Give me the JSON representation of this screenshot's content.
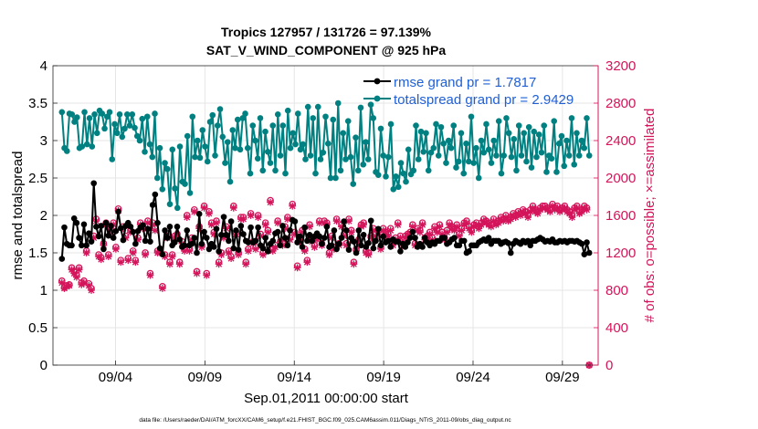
{
  "colors": {
    "rmse": "#000000",
    "spread": "#008080",
    "obs": "#d4145a",
    "legend_text": "#1f5fd6",
    "grid": "#e6e6e6"
  },
  "chart_data": {
    "type": "line",
    "title_line1": "Tropics 127957 / 131726 = 97.139%",
    "title_line2": "SAT_V_WIND_COMPONENT @ 925 hPa",
    "xlabel": "Sep.01,2011 00:00:00 start",
    "ylabel_left": "rmse and totalspread",
    "ylabel_right": "# of obs: o=possible; ×=assimilated",
    "footer": "data file: /Users/raeder/DAI/ATM_forcXX/CAM6_setup/f.e21.FHIST_BGC.f09_025.CAM6assim.011/Diags_NTrS_2011-09/obs_diag_output.nc",
    "xlim": [
      0,
      30.5
    ],
    "ylim_left": [
      0,
      4
    ],
    "ylim_right": [
      0,
      3200
    ],
    "x_ticks": [
      {
        "pos": 3.5,
        "label": "09/04"
      },
      {
        "pos": 8.5,
        "label": "09/09"
      },
      {
        "pos": 13.5,
        "label": "09/14"
      },
      {
        "pos": 18.5,
        "label": "09/19"
      },
      {
        "pos": 23.5,
        "label": "09/24"
      },
      {
        "pos": 28.5,
        "label": "09/29"
      }
    ],
    "y_ticks_left": [
      "0",
      "0.5",
      "1",
      "1.5",
      "2",
      "2.5",
      "3",
      "3.5",
      "4"
    ],
    "y_ticks_right": [
      "0",
      "400",
      "800",
      "1200",
      "1600",
      "2000",
      "2400",
      "2800",
      "3200"
    ],
    "legend": {
      "location": "top-right",
      "entries": [
        "rmse grand pr = 1.7817",
        "totalspread grand pr = 2.9429"
      ]
    },
    "series": [
      {
        "name": "rmse",
        "axis": "left",
        "values": [
          1.42,
          1.84,
          1.62,
          1.6,
          1.6,
          1.96,
          1.9,
          1.7,
          1.6,
          1.88,
          1.6,
          1.76,
          1.65,
          2.43,
          1.85,
          1.72,
          1.86,
          1.55,
          1.9,
          1.73,
          1.86,
          1.7,
          1.79,
          2.05,
          1.83,
          1.67,
          1.86,
          1.9,
          1.85,
          1.78,
          1.62,
          1.79,
          1.84,
          1.87,
          1.66,
          1.82,
          1.65,
          2.14,
          2.28,
          1.9,
          1.56,
          1.48,
          1.8,
          1.7,
          1.85,
          1.6,
          1.64,
          1.85,
          1.68,
          1.58,
          1.6,
          1.8,
          1.6,
          1.62,
          1.7,
          1.5,
          2.02,
          1.62,
          1.78,
          1.7,
          1.55,
          1.62,
          1.58,
          1.82,
          1.52,
          1.74,
          1.98,
          1.74,
          1.66,
          1.92,
          1.56,
          1.8,
          1.54,
          1.86,
          1.75,
          1.66,
          1.64,
          1.84,
          1.64,
          1.66,
          1.84,
          1.6,
          1.56,
          1.7,
          1.52,
          1.62,
          1.66,
          1.76,
          1.78,
          1.6,
          1.86,
          1.7,
          1.6,
          1.8,
          1.94,
          1.92,
          1.64,
          1.72,
          1.58,
          1.84,
          1.66,
          1.74,
          1.66,
          1.72,
          1.76,
          1.72,
          1.62,
          1.7,
          1.85,
          1.58,
          1.6,
          1.8,
          1.55,
          1.62,
          1.7,
          1.92,
          1.8,
          1.54,
          1.7,
          1.65,
          1.5,
          1.8,
          1.6,
          1.74,
          1.58,
          1.63,
          1.93,
          1.56,
          1.66,
          1.82,
          1.6,
          1.72,
          1.64,
          1.66,
          1.58,
          1.68,
          1.65,
          1.65,
          1.52,
          1.62,
          1.58,
          1.64,
          1.7,
          1.78,
          1.7,
          1.58,
          1.62,
          1.58,
          1.7,
          1.64,
          1.6,
          1.64,
          1.62,
          1.66,
          1.66,
          1.7,
          1.7,
          1.62,
          1.64,
          1.68,
          1.7,
          1.6,
          1.6,
          1.66,
          1.66,
          1.5,
          1.52,
          1.6,
          1.6,
          1.6,
          1.64,
          1.66,
          1.68,
          1.66,
          1.7,
          1.62,
          1.66,
          1.66,
          1.66,
          1.62,
          1.64,
          1.65,
          1.63,
          1.5,
          1.62,
          1.66,
          1.64,
          1.62,
          1.66,
          1.64,
          1.66,
          1.6,
          1.66,
          1.66,
          1.68,
          1.7,
          1.68,
          1.65,
          1.66,
          1.65,
          1.68,
          1.64,
          1.64,
          1.66,
          1.65,
          1.66,
          1.64,
          1.66,
          1.66,
          1.65,
          1.66,
          1.64,
          1.62,
          1.48,
          1.64,
          1.5
        ]
      },
      {
        "name": "totalspread",
        "axis": "left",
        "values": [
          3.38,
          2.9,
          2.86,
          3.36,
          3.35,
          3.25,
          3.31,
          2.9,
          2.92,
          3.38,
          2.95,
          3.3,
          2.92,
          3.35,
          3.1,
          3.4,
          3.36,
          3.16,
          3.32,
          3.38,
          2.75,
          3.22,
          3.1,
          3.35,
          3.05,
          3.16,
          3.35,
          3.2,
          3.35,
          3.17,
          3.06,
          3.0,
          3.29,
          2.85,
          3.32,
          2.95,
          2.78,
          3.36,
          2.5,
          2.9,
          2.35,
          2.7,
          2.62,
          2.15,
          2.88,
          2.36,
          2.1,
          2.92,
          2.45,
          2.42,
          3.06,
          2.3,
          3.32,
          2.78,
          3.0,
          2.77,
          3.14,
          2.92,
          2.72,
          3.25,
          3.34,
          2.8,
          3.2,
          3.42,
          3.05,
          2.7,
          2.98,
          2.45,
          3.14,
          2.9,
          3.28,
          2.88,
          3.3,
          3.36,
          2.9,
          2.56,
          3.2,
          3.0,
          2.76,
          3.3,
          2.6,
          3.12,
          2.85,
          2.7,
          3.2,
          2.6,
          3.35,
          2.8,
          3.2,
          2.56,
          3.4,
          2.9,
          3.1,
          2.95,
          3.36,
          2.88,
          2.95,
          2.75,
          3.45,
          2.8,
          3.3,
          2.56,
          3.45,
          2.75,
          2.84,
          3.32,
          2.96,
          2.5,
          3.28,
          2.5,
          3.5,
          2.6,
          3.1,
          2.75,
          3.26,
          2.78,
          2.42,
          3.04,
          2.6,
          3.44,
          2.68,
          2.98,
          2.75,
          3.48,
          3.3,
          2.58,
          2.54,
          3.16,
          2.8,
          2.52,
          2.78,
          3.22,
          2.35,
          2.52,
          2.38,
          2.7,
          2.56,
          2.45,
          2.88,
          2.55,
          2.6,
          3.2,
          2.75,
          3.12,
          2.85,
          3.1,
          2.6,
          2.84,
          2.9,
          3.22,
          2.8,
          3.18,
          2.96,
          2.7,
          3.0,
          2.9,
          3.2,
          2.64,
          2.72,
          3.1,
          2.56,
          2.96,
          2.72,
          3.32,
          2.7,
          2.9,
          2.5,
          3.0,
          2.84,
          3.22,
          2.88,
          2.7,
          3.0,
          2.8,
          3.26,
          2.56,
          2.8,
          3.3,
          3.1,
          2.78,
          3.02,
          2.6,
          3.2,
          2.8,
          3.1,
          2.72,
          3.18,
          2.64,
          3.12,
          2.78,
          3.08,
          2.84,
          3.2,
          2.58,
          2.8,
          2.76,
          3.26,
          2.58,
          2.96,
          3.06,
          2.66,
          3.0,
          2.8,
          3.3,
          2.68,
          3.1,
          2.8,
          3.0,
          2.9,
          3.3,
          2.8
        ]
      },
      {
        "name": "obs_possible",
        "axis": "right",
        "values": [
          900,
          830,
          850,
          860,
          1040,
          1000,
          960,
          1040,
          880,
          900,
          1220,
          870,
          820,
          1380,
          1560,
          1180,
          1150,
          1300,
          1520,
          1180,
          1440,
          1520,
          1260,
          1670,
          1120,
          1480,
          1380,
          1140,
          1440,
          1220,
          1120,
          1360,
          1520,
          1480,
          1200,
          1540,
          980,
          1520,
          1460,
          1220,
          1220,
          840,
          1180,
          1380,
          1100,
          1180,
          1380,
          1400,
          1100,
          1320,
          1240,
          1600,
          1240,
          1360,
          1660,
          1000,
          1480,
          1280,
          1700,
          980,
          1640,
          1520,
          1420,
          1540,
          1100,
          1200,
          1380,
          1480,
          1220,
          1160,
          1700,
          1420,
          1200,
          1580,
          1580,
          1100,
          1240,
          1620,
          1320,
          1260,
          1600,
          1400,
          1200,
          1520,
          1440,
          1760,
          1240,
          1280,
          1540,
          1320,
          1300,
          1480,
          1580,
          1360,
          1720,
          1420,
          1060,
          1340,
          1440,
          1240,
          1120,
          1500,
          1340,
          1280,
          1360,
          1540,
          1300,
          1540,
          1520,
          1200,
          1380,
          1260,
          1560,
          1300,
          1500,
          1400,
          1300,
          1560,
          1440,
          1100,
          1240,
          1340,
          1500,
          1520,
          1220,
          1200,
          1380,
          1460,
          1400,
          1440,
          1260,
          1460,
          1420,
          1400,
          1460,
          1300,
          1360,
          1520,
          1380,
          1300,
          1380,
          1400,
          1420,
          1500,
          1300,
          1460,
          1440,
          1520,
          1360,
          1380,
          1420,
          1360,
          1480,
          1440,
          1500,
          1420,
          1360,
          1440,
          1520,
          1480,
          1460,
          1500,
          1400,
          1460,
          1520,
          1540,
          1480,
          1440,
          1500,
          1520,
          1480,
          1520,
          1560,
          1540,
          1520,
          1500,
          1560,
          1520,
          1540,
          1580,
          1560,
          1600,
          1560,
          1580,
          1620,
          1600,
          1640,
          1620,
          1660,
          1640,
          1600,
          1660,
          1700,
          1660,
          1640,
          1680,
          1700,
          1700,
          1680,
          1660,
          1720,
          1680,
          1700,
          1660,
          1680,
          1700,
          1660,
          1640,
          1600,
          1680,
          1700,
          1640,
          1660,
          1700,
          1680,
          0
        ]
      },
      {
        "name": "obs_assimilated",
        "axis": "right",
        "values": [
          880,
          820,
          840,
          850,
          1020,
          980,
          940,
          1020,
          860,
          880,
          1200,
          850,
          800,
          1360,
          1540,
          1160,
          1130,
          1280,
          1500,
          1160,
          1420,
          1500,
          1240,
          1650,
          1100,
          1460,
          1360,
          1120,
          1420,
          1200,
          1100,
          1340,
          1500,
          1460,
          1180,
          1520,
          960,
          1500,
          1440,
          1200,
          1200,
          820,
          1160,
          1360,
          1080,
          1160,
          1360,
          1380,
          1080,
          1300,
          1220,
          1580,
          1220,
          1340,
          1640,
          980,
          1460,
          1260,
          1680,
          960,
          1620,
          1500,
          1400,
          1520,
          1080,
          1180,
          1360,
          1460,
          1200,
          1140,
          1680,
          1400,
          1180,
          1560,
          1560,
          1080,
          1220,
          1600,
          1300,
          1240,
          1580,
          1380,
          1180,
          1500,
          1420,
          1740,
          1220,
          1260,
          1520,
          1300,
          1280,
          1460,
          1560,
          1340,
          1700,
          1400,
          1040,
          1320,
          1420,
          1220,
          1100,
          1480,
          1320,
          1260,
          1340,
          1520,
          1280,
          1520,
          1500,
          1180,
          1360,
          1240,
          1540,
          1280,
          1480,
          1380,
          1280,
          1540,
          1420,
          1080,
          1220,
          1320,
          1480,
          1500,
          1200,
          1180,
          1360,
          1440,
          1380,
          1420,
          1240,
          1440,
          1400,
          1380,
          1440,
          1280,
          1340,
          1500,
          1360,
          1280,
          1360,
          1380,
          1400,
          1480,
          1280,
          1440,
          1420,
          1500,
          1340,
          1360,
          1400,
          1340,
          1460,
          1420,
          1480,
          1400,
          1340,
          1420,
          1500,
          1460,
          1440,
          1480,
          1380,
          1440,
          1500,
          1520,
          1460,
          1420,
          1480,
          1500,
          1460,
          1500,
          1540,
          1520,
          1500,
          1480,
          1540,
          1500,
          1520,
          1560,
          1540,
          1580,
          1540,
          1560,
          1600,
          1580,
          1620,
          1600,
          1640,
          1620,
          1580,
          1640,
          1680,
          1640,
          1620,
          1660,
          1680,
          1680,
          1660,
          1640,
          1700,
          1660,
          1680,
          1640,
          1660,
          1680,
          1640,
          1620,
          1580,
          1660,
          1680,
          1620,
          1640,
          1680,
          1660,
          0
        ]
      }
    ]
  }
}
